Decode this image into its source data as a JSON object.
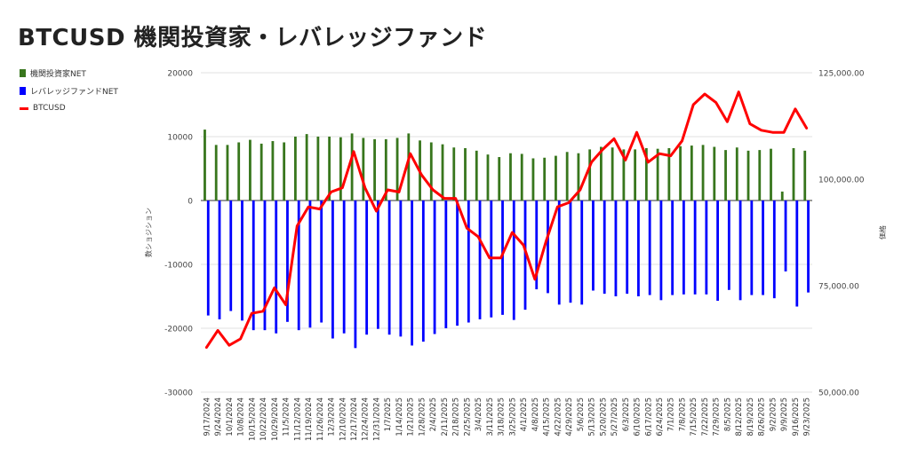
{
  "chart_data": {
    "type": "bar",
    "title": "BTCUSD  機関投資家・レバレッジファンド",
    "ylabel_left": "数ショジション",
    "ylabel_right": "価格",
    "xlabel": "",
    "ylim_left": [
      -30000,
      20000
    ],
    "yticks_left": [
      "20000",
      "10000",
      "0",
      "-10000",
      "-20000",
      "-30000"
    ],
    "yticks_left_values": [
      20000,
      10000,
      0,
      -10000,
      -20000,
      -30000
    ],
    "ylim_right": [
      50000,
      125000
    ],
    "yticks_right": [
      "125,000.00",
      "100,000.00",
      "75,000.00",
      "50,000.00"
    ],
    "yticks_right_values": [
      125000,
      100000,
      75000,
      50000
    ],
    "grid": true,
    "legend_position": "top-left",
    "categories": [
      "9/17/2024",
      "9/24/2024",
      "10/1/2024",
      "10/8/2024",
      "10/15/2024",
      "10/22/2024",
      "10/29/2024",
      "11/5/2024",
      "11/12/2024",
      "11/19/2024",
      "11/26/2024",
      "12/3/2024",
      "12/10/2024",
      "12/17/2024",
      "12/24/2024",
      "12/31/2024",
      "1/7/2025",
      "1/14/2025",
      "1/21/2025",
      "1/28/2025",
      "2/4/2025",
      "2/11/2025",
      "2/18/2025",
      "2/25/2025",
      "3/4/2025",
      "3/11/2025",
      "3/18/2025",
      "3/25/2025",
      "4/1/2025",
      "4/8/2025",
      "4/15/2025",
      "4/22/2025",
      "4/29/2025",
      "5/6/2025",
      "5/13/2025",
      "5/20/2025",
      "5/27/2025",
      "6/3/2025",
      "6/10/2025",
      "6/17/2025",
      "6/24/2025",
      "7/1/2025",
      "7/8/2025",
      "7/15/2025",
      "7/22/2025",
      "7/29/2025",
      "8/5/2025",
      "8/12/2025",
      "8/19/2025",
      "8/26/2025",
      "9/2/2025",
      "9/9/2025",
      "9/16/2025",
      "9/23/2025"
    ],
    "series": [
      {
        "name": "機関投資家NET",
        "type": "bar",
        "axis": "left",
        "color": "#38761d",
        "values": [
          11100,
          8700,
          8700,
          9100,
          9500,
          8900,
          9300,
          9100,
          10000,
          10400,
          10000,
          10000,
          9900,
          10500,
          9800,
          9600,
          9600,
          9800,
          10500,
          9400,
          9100,
          8800,
          8300,
          8200,
          7800,
          7200,
          6800,
          7400,
          7300,
          6600,
          6700,
          7000,
          7600,
          7400,
          8000,
          8400,
          8300,
          8000,
          8000,
          8200,
          8100,
          8200,
          8500,
          8600,
          8700,
          8400,
          7900,
          8300,
          7800,
          7900,
          8100,
          1400,
          8200,
          7800
        ]
      },
      {
        "name": "レバレッジファンドNET",
        "type": "bar",
        "axis": "left",
        "color": "#0000ff",
        "values": [
          -18000,
          -18600,
          -17300,
          -18800,
          -20300,
          -20300,
          -20800,
          -19000,
          -20300,
          -19900,
          -19100,
          -21600,
          -20800,
          -23100,
          -21000,
          -20100,
          -21000,
          -21300,
          -22700,
          -22100,
          -20900,
          -20000,
          -19600,
          -19100,
          -18600,
          -18300,
          -17900,
          -18700,
          -17100,
          -13900,
          -14500,
          -16300,
          -16000,
          -16300,
          -14100,
          -14600,
          -15000,
          -14600,
          -15000,
          -14800,
          -15600,
          -14800,
          -14700,
          -14700,
          -14700,
          -15700,
          -14000,
          -15600,
          -14800,
          -14800,
          -15300,
          -11100,
          -16600,
          -14400
        ]
      },
      {
        "name": "BTCUSD",
        "type": "line",
        "axis": "right",
        "color": "#ff0000",
        "values": [
          60500,
          64500,
          61000,
          62500,
          68500,
          69000,
          74500,
          70500,
          89000,
          93500,
          93000,
          97000,
          98000,
          106500,
          98000,
          92500,
          97500,
          97000,
          106000,
          101000,
          97500,
          95500,
          95500,
          88500,
          86500,
          81500,
          81500,
          87500,
          84500,
          76500,
          85500,
          93500,
          94500,
          97500,
          104000,
          107000,
          109500,
          104500,
          111000,
          104000,
          106000,
          105500,
          109000,
          117500,
          120000,
          118000,
          113500,
          120500,
          113000,
          111500,
          111000,
          111000,
          116500,
          112000
        ]
      }
    ]
  }
}
